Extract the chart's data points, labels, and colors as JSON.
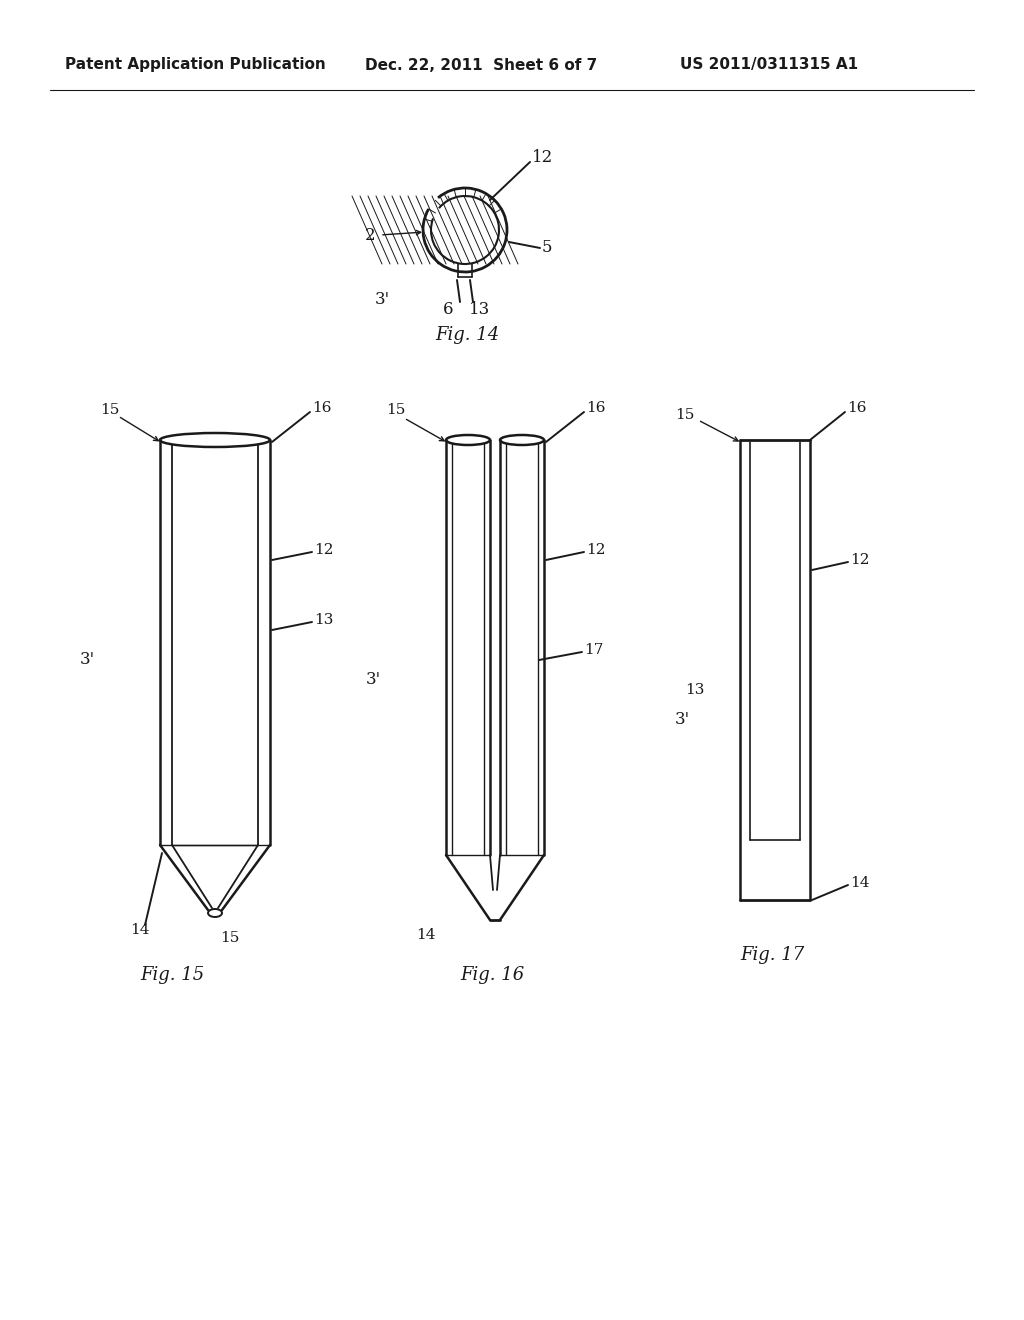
{
  "bg_color": "#ffffff",
  "line_color": "#1a1a1a",
  "header_left": "Patent Application Publication",
  "header_center": "Dec. 22, 2011  Sheet 6 of 7",
  "header_right": "US 2011/0311315 A1",
  "fig14_label": "Fig. 14",
  "fig15_label": "Fig. 15",
  "fig16_label": "Fig. 16",
  "fig17_label": "Fig. 17"
}
